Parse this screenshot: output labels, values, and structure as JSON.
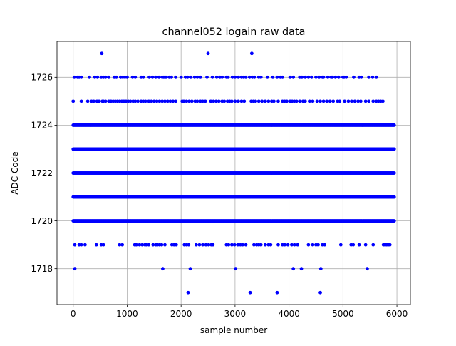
{
  "chart_data": {
    "type": "scatter",
    "title": "channel052 logain raw data",
    "xlabel": "sample number",
    "ylabel": "ADC Code",
    "xlim": [
      -300,
      6250
    ],
    "ylim": [
      1716.5,
      1727.5
    ],
    "xticks": [
      0,
      1000,
      2000,
      3000,
      4000,
      5000,
      6000
    ],
    "yticks": [
      1718,
      1720,
      1722,
      1724,
      1726
    ],
    "grid": true,
    "legend": "none",
    "marker_color": "#0000ff",
    "n_samples": 6000,
    "series": [
      {
        "y": 1717,
        "x": [
          2130,
          3280,
          3780,
          4580
        ]
      },
      {
        "y": 1718,
        "x": [
          30,
          1660,
          2170,
          3010,
          4080,
          4230,
          4590,
          5450
        ]
      },
      {
        "y": 1719,
        "x": [
          30,
          110,
          150,
          220,
          430,
          520,
          560,
          860,
          910,
          1140,
          1170,
          1230,
          1280,
          1330,
          1360,
          1400,
          1480,
          1530,
          1560,
          1600,
          1640,
          1700,
          1830,
          1870,
          1910,
          2060,
          2100,
          2140,
          2280,
          2340,
          2400,
          2460,
          2510,
          2560,
          2590,
          2840,
          2880,
          2940,
          2990,
          3050,
          3100,
          3140,
          3200,
          3350,
          3400,
          3440,
          3480,
          3560,
          3620,
          3660,
          3800,
          3880,
          3920,
          3980,
          4050,
          4100,
          4160,
          4360,
          4440,
          4500,
          4540,
          4620,
          4660,
          4960,
          5150,
          5190,
          5300,
          5420,
          5560,
          5750,
          5780,
          5810,
          5840,
          5870
        ]
      },
      {
        "y": 1720,
        "x_range": [
          0,
          5950
        ],
        "density": "dense"
      },
      {
        "y": 1721,
        "x_range": [
          0,
          5950
        ],
        "density": "dense"
      },
      {
        "y": 1722,
        "x_range": [
          0,
          5950
        ],
        "density": "dense"
      },
      {
        "y": 1723,
        "x_range": [
          0,
          5950
        ],
        "density": "dense"
      },
      {
        "y": 1724,
        "x_range": [
          0,
          5950
        ],
        "density": "dense"
      },
      {
        "y": 1725,
        "x": [
          0,
          150,
          270,
          340,
          380,
          440,
          480,
          540,
          560,
          600,
          660,
          700,
          740,
          780,
          820,
          860,
          900,
          940,
          980,
          1020,
          1060,
          1110,
          1150,
          1200,
          1260,
          1300,
          1340,
          1400,
          1450,
          1500,
          1550,
          1600,
          1650,
          1700,
          1750,
          1800,
          1850,
          1900,
          2020,
          2050,
          2100,
          2150,
          2200,
          2260,
          2300,
          2360,
          2400,
          2450,
          2550,
          2600,
          2650,
          2700,
          2760,
          2800,
          2860,
          2900,
          2940,
          3000,
          3060,
          3120,
          3170,
          3300,
          3340,
          3380,
          3440,
          3500,
          3560,
          3620,
          3680,
          3720,
          3800,
          3880,
          3920,
          3960,
          4020,
          4060,
          4100,
          4140,
          4200,
          4260,
          4300,
          4380,
          4440,
          4520,
          4580,
          4640,
          4700,
          4760,
          4820,
          4900,
          4940,
          5030,
          5100,
          5160,
          5220,
          5280,
          5330,
          5420,
          5480,
          5560,
          5620,
          5660,
          5700,
          5740
        ]
      },
      {
        "y": 1726,
        "x": [
          20,
          80,
          110,
          150,
          300,
          400,
          450,
          520,
          560,
          600,
          660,
          760,
          800,
          880,
          920,
          960,
          1000,
          1100,
          1150,
          1260,
          1300,
          1410,
          1470,
          1530,
          1590,
          1650,
          1680,
          1720,
          1780,
          1820,
          1900,
          2000,
          2080,
          2120,
          2180,
          2250,
          2300,
          2360,
          2480,
          2580,
          2660,
          2720,
          2760,
          2840,
          2870,
          2950,
          3000,
          3060,
          3120,
          3160,
          3200,
          3270,
          3320,
          3360,
          3440,
          3480,
          3600,
          3700,
          3780,
          3840,
          3880,
          4020,
          4080,
          4200,
          4240,
          4300,
          4360,
          4420,
          4500,
          4560,
          4620,
          4640,
          4720,
          4780,
          4800,
          4860,
          4920,
          5000,
          5020,
          5060,
          5200,
          5300,
          5340,
          5480,
          5550,
          5620
        ]
      },
      {
        "y": 1727,
        "x": [
          530,
          2500,
          3310
        ]
      }
    ]
  }
}
